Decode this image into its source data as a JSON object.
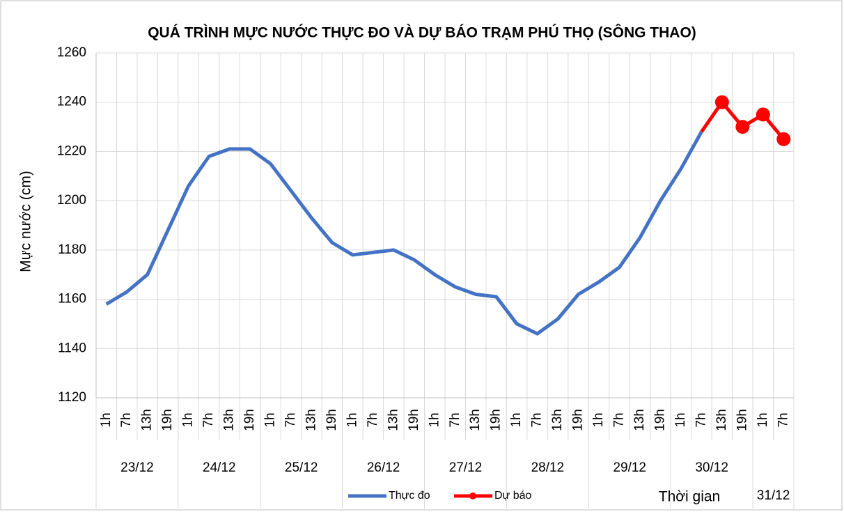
{
  "chart_data": {
    "type": "line",
    "title": "QUÁ TRÌNH MỰC NƯỚC THỰC ĐO VÀ DỰ BÁO TRẠM PHÚ THỌ (SÔNG THAO)",
    "y_label": "Mực nước (cm)",
    "x_label": "Thời gian",
    "groups": [
      {
        "label": "23/12",
        "categories": [
          "1h",
          "7h",
          "13h",
          "19h"
        ]
      },
      {
        "label": "24/12",
        "categories": [
          "1h",
          "7h",
          "13h",
          "19h"
        ]
      },
      {
        "label": "25/12",
        "categories": [
          "1h",
          "7h",
          "13h",
          "19h"
        ]
      },
      {
        "label": "26/12",
        "categories": [
          "1h",
          "7h",
          "13h",
          "19h"
        ]
      },
      {
        "label": "27/12",
        "categories": [
          "1h",
          "7h",
          "13h",
          "19h"
        ]
      },
      {
        "label": "28/12",
        "categories": [
          "1h",
          "7h",
          "13h",
          "19h"
        ]
      },
      {
        "label": "29/12",
        "categories": [
          "1h",
          "7h",
          "13h",
          "19h"
        ]
      },
      {
        "label": "30/12",
        "categories": [
          "1h",
          "7h",
          "13h",
          "19h"
        ]
      },
      {
        "label": "31/12",
        "categories": [
          "1h",
          "7h"
        ]
      }
    ],
    "series": [
      {
        "name": "Thực đo",
        "color": "#4472c4",
        "markers": false,
        "values": [
          1158,
          1163,
          1170,
          1188,
          1206,
          1218,
          1221,
          1221,
          1215,
          1204,
          1193,
          1183,
          1178,
          1179,
          1180,
          1176,
          1170,
          1165,
          1162,
          1161,
          1150,
          1146,
          1152,
          1162,
          1167,
          1173,
          1185,
          1200,
          1213,
          1228,
          null,
          null,
          null,
          null
        ]
      },
      {
        "name": "Dự báo",
        "color": "#ff0000",
        "markers": true,
        "values": [
          null,
          null,
          null,
          null,
          null,
          null,
          null,
          null,
          null,
          null,
          null,
          null,
          null,
          null,
          null,
          null,
          null,
          null,
          null,
          null,
          null,
          null,
          null,
          null,
          null,
          null,
          null,
          null,
          null,
          1228,
          1240,
          1230,
          1235,
          1225
        ]
      }
    ],
    "ylim": [
      1120,
      1260
    ],
    "yticks": [
      1120,
      1140,
      1160,
      1180,
      1200,
      1220,
      1240,
      1260
    ],
    "grid": true
  }
}
